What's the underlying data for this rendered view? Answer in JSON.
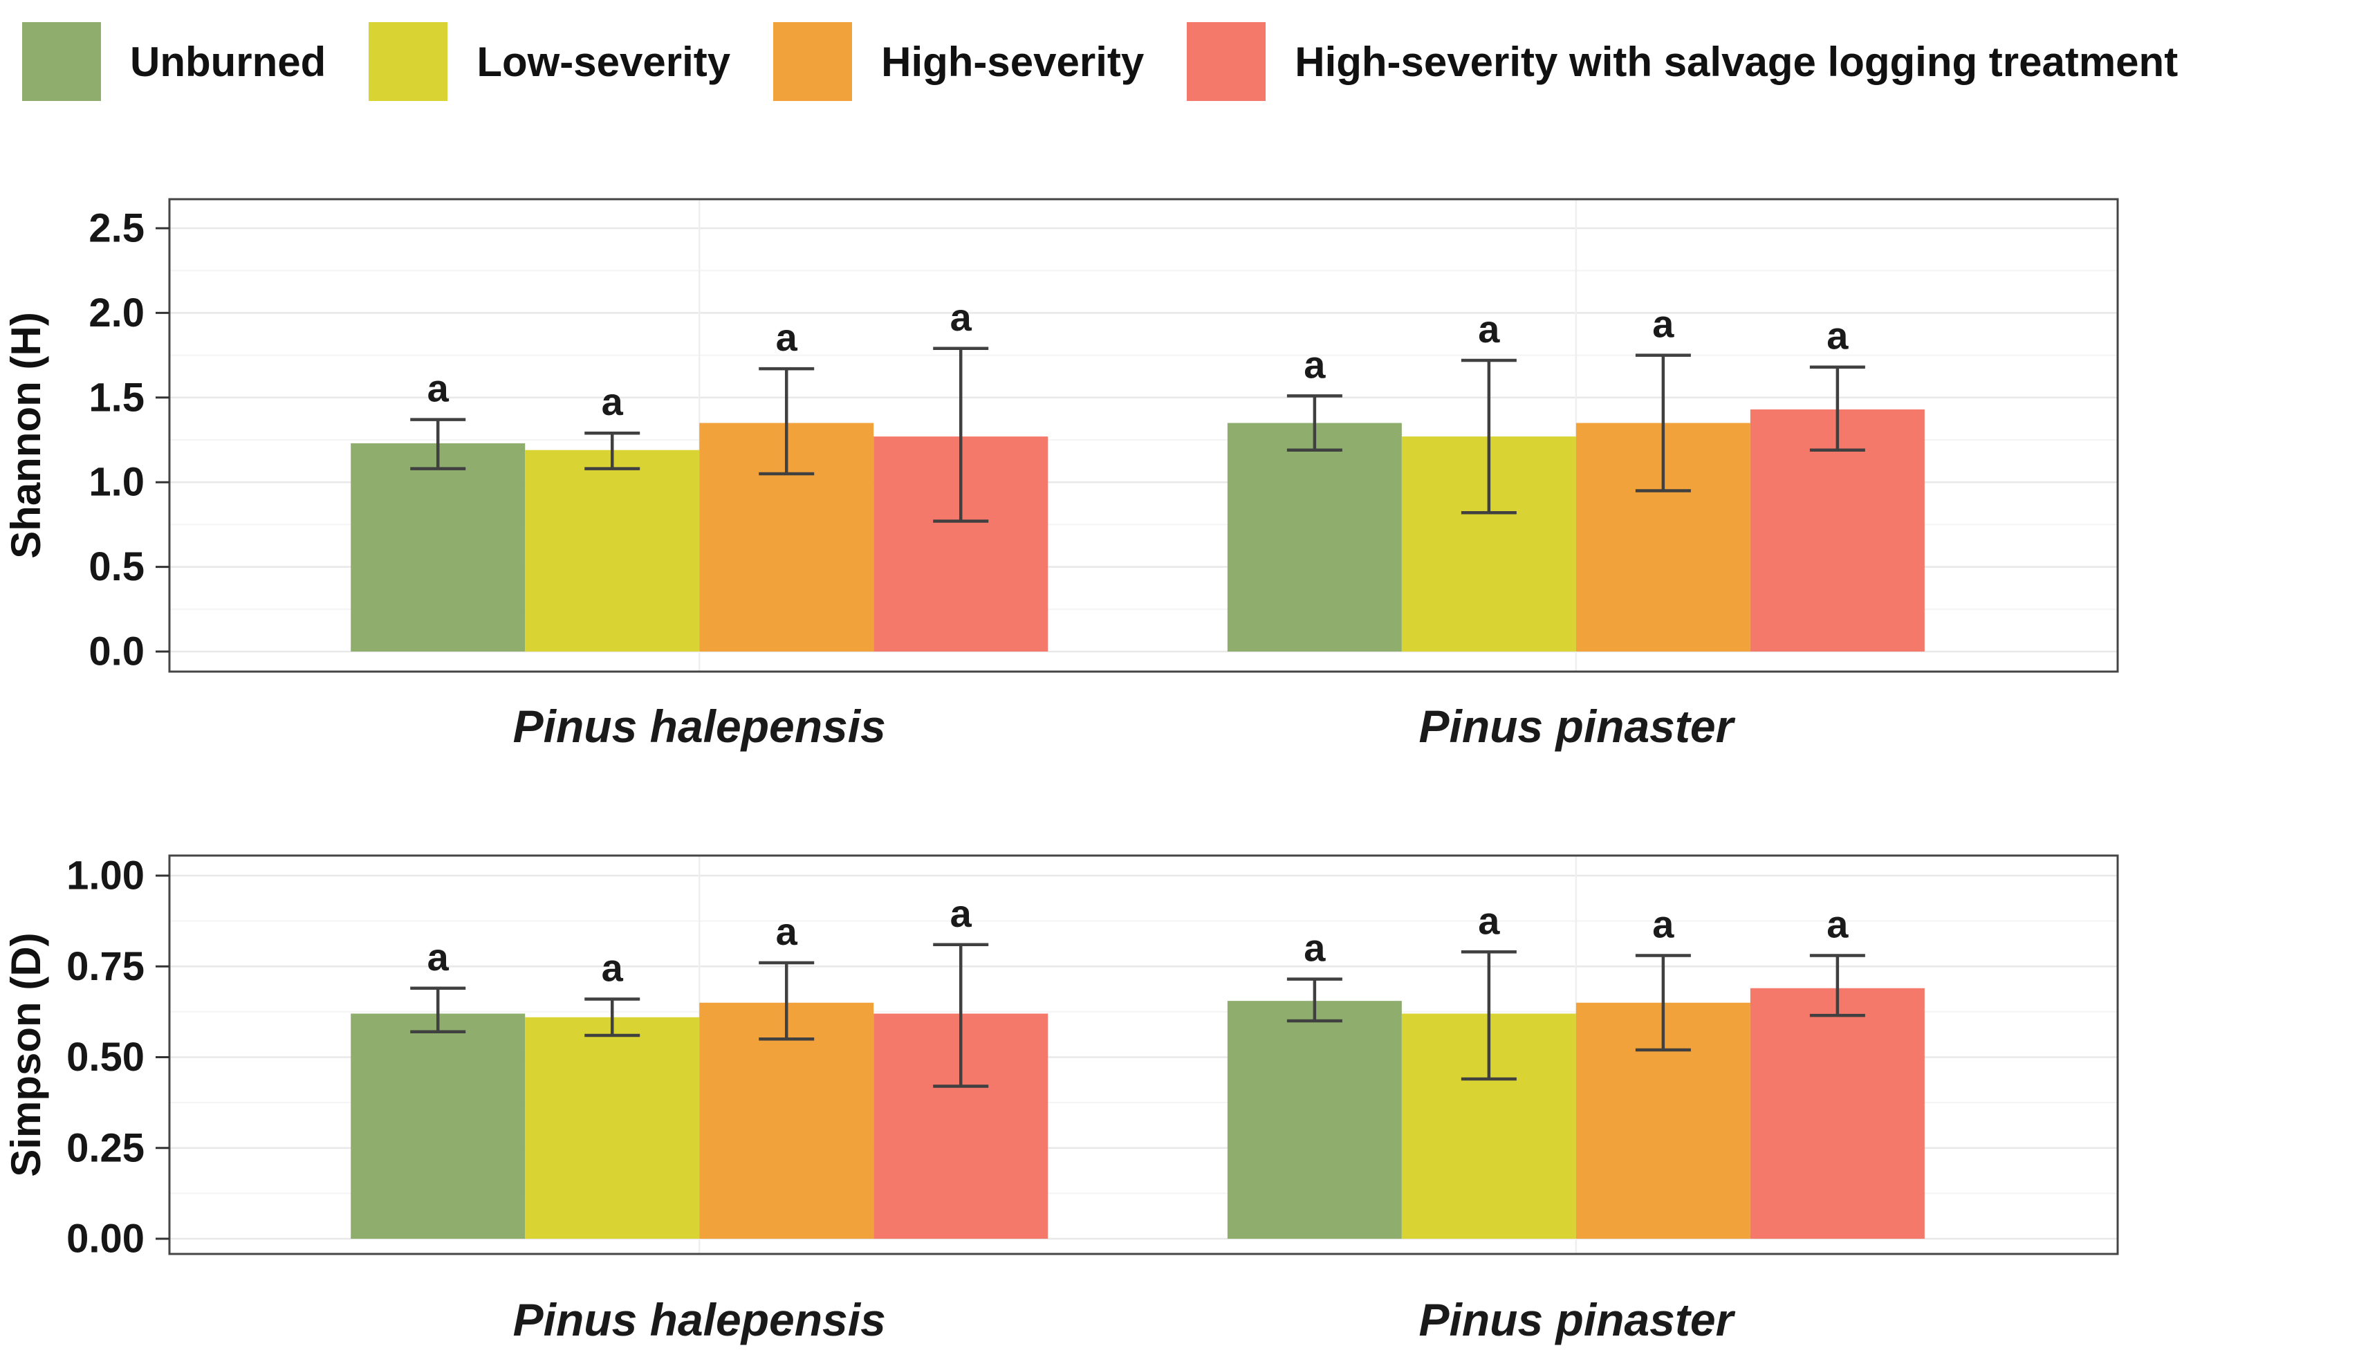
{
  "legend": {
    "items": [
      {
        "label": "Unburned",
        "color": "#8fae6e"
      },
      {
        "label": "Low-severity",
        "color": "#d9d334"
      },
      {
        "label": "High-severity",
        "color": "#f2a23b"
      },
      {
        "label": "High-severity with salvage logging treatment",
        "color": "#f5796b"
      }
    ]
  },
  "chart_data": [
    {
      "type": "bar",
      "title": "",
      "ylabel": "Shannon (H)",
      "xlabel": "",
      "ylim": [
        0,
        2.5
      ],
      "yticks": [
        0,
        0.5,
        1.0,
        1.5,
        2.0,
        2.5
      ],
      "ytick_labels": [
        "0.0",
        "0.5",
        "1.0",
        "1.5",
        "2.0",
        "2.5"
      ],
      "categories": [
        "Pinus halepensis",
        "Pinus pinaster"
      ],
      "grid": true,
      "legend_position": "top",
      "series": [
        {
          "name": "Unburned",
          "values": [
            1.23,
            1.35
          ],
          "err_low": [
            1.08,
            1.19
          ],
          "err_high": [
            1.37,
            1.51
          ],
          "letters": [
            "a",
            "a"
          ]
        },
        {
          "name": "Low-severity",
          "values": [
            1.19,
            1.27
          ],
          "err_low": [
            1.08,
            0.82
          ],
          "err_high": [
            1.29,
            1.72
          ],
          "letters": [
            "a",
            "a"
          ]
        },
        {
          "name": "High-severity",
          "values": [
            1.35,
            1.35
          ],
          "err_low": [
            1.05,
            0.95
          ],
          "err_high": [
            1.67,
            1.75
          ],
          "letters": [
            "a",
            "a"
          ]
        },
        {
          "name": "High-severity with salvage logging treatment",
          "values": [
            1.27,
            1.43
          ],
          "err_low": [
            0.77,
            1.19
          ],
          "err_high": [
            1.79,
            1.68
          ],
          "letters": [
            "a",
            "a"
          ]
        }
      ]
    },
    {
      "type": "bar",
      "title": "",
      "ylabel": "Simpson (D)",
      "xlabel": "",
      "ylim": [
        0,
        1.0
      ],
      "yticks": [
        0,
        0.25,
        0.5,
        0.75,
        1.0
      ],
      "ytick_labels": [
        "0.00",
        "0.25",
        "0.50",
        "0.75",
        "1.00"
      ],
      "categories": [
        "Pinus halepensis",
        "Pinus pinaster"
      ],
      "grid": true,
      "legend_position": "top",
      "series": [
        {
          "name": "Unburned",
          "values": [
            0.62,
            0.655
          ],
          "err_low": [
            0.57,
            0.6
          ],
          "err_high": [
            0.69,
            0.715
          ],
          "letters": [
            "a",
            "a"
          ]
        },
        {
          "name": "Low-severity",
          "values": [
            0.61,
            0.62
          ],
          "err_low": [
            0.56,
            0.44
          ],
          "err_high": [
            0.66,
            0.79
          ],
          "letters": [
            "a",
            "a"
          ]
        },
        {
          "name": "High-severity",
          "values": [
            0.65,
            0.65
          ],
          "err_low": [
            0.55,
            0.52
          ],
          "err_high": [
            0.76,
            0.78
          ],
          "letters": [
            "a",
            "a"
          ]
        },
        {
          "name": "High-severity with salvage logging treatment",
          "values": [
            0.62,
            0.69
          ],
          "err_low": [
            0.42,
            0.615
          ],
          "err_high": [
            0.81,
            0.78
          ],
          "letters": [
            "a",
            "a"
          ]
        }
      ]
    }
  ]
}
